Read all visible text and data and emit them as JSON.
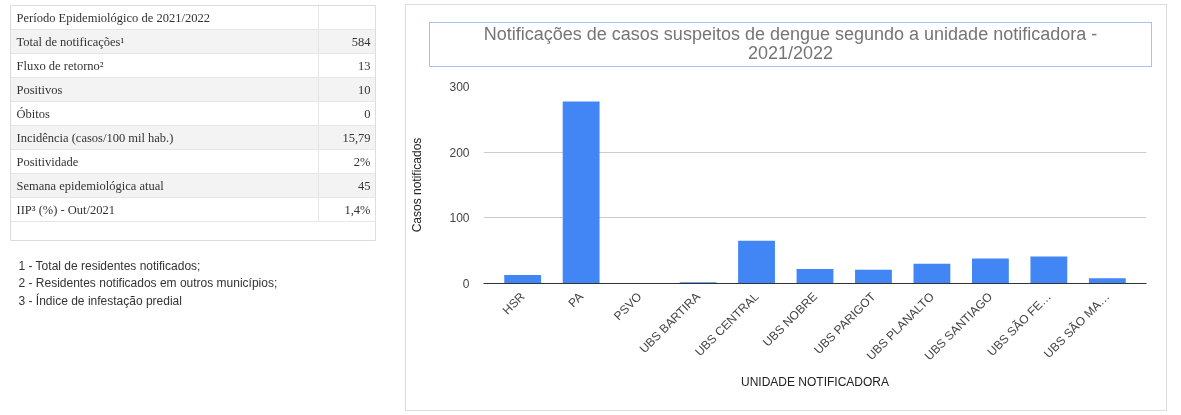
{
  "chart_data": [
    {
      "type": "other",
      "title": "Período Epidemiológico de 2021/2022",
      "categories": [
        "Total de notificações¹",
        "Fluxo de retorno²",
        "Positivos",
        "Óbitos",
        "Incidência (casos/100 mil hab.)",
        "Positividade",
        "Semana epidemiológica atual",
        "IIP³ (%) - Out/2021"
      ],
      "value_labels": [
        "584",
        "13",
        "10",
        "0",
        "15,79",
        "2%",
        "45",
        "1,4%"
      ],
      "annotations": [
        "1 - Total de residentes notificados;",
        "2 - Residentes notificados em outros municípios;",
        "3 - Índice de infestação predial"
      ]
    },
    {
      "type": "bar",
      "title": "Notificações de casos suspeitos de dengue segundo a unidade notificadora - 2021/2022",
      "xlabel": "UNIDADE NOTIFICADORA",
      "ylabel": "Casos notificados",
      "categories": [
        "HSR",
        "PA",
        "PSVO",
        "UBS BARTIRA",
        "UBS CENTRAL",
        "UBS NOBRE",
        "UBS PARIGOT",
        "UBS PLANALTO",
        "UBS SANTIAGO",
        "UBS SÃO FE…",
        "UBS SÃO MA…"
      ],
      "values": [
        13,
        277,
        0,
        2,
        65,
        22,
        21,
        30,
        38,
        41,
        8
      ],
      "color": "#4285f4",
      "ylim": [
        0,
        300
      ],
      "yticks": [
        0,
        100,
        200,
        300
      ],
      "grid": "y"
    }
  ]
}
